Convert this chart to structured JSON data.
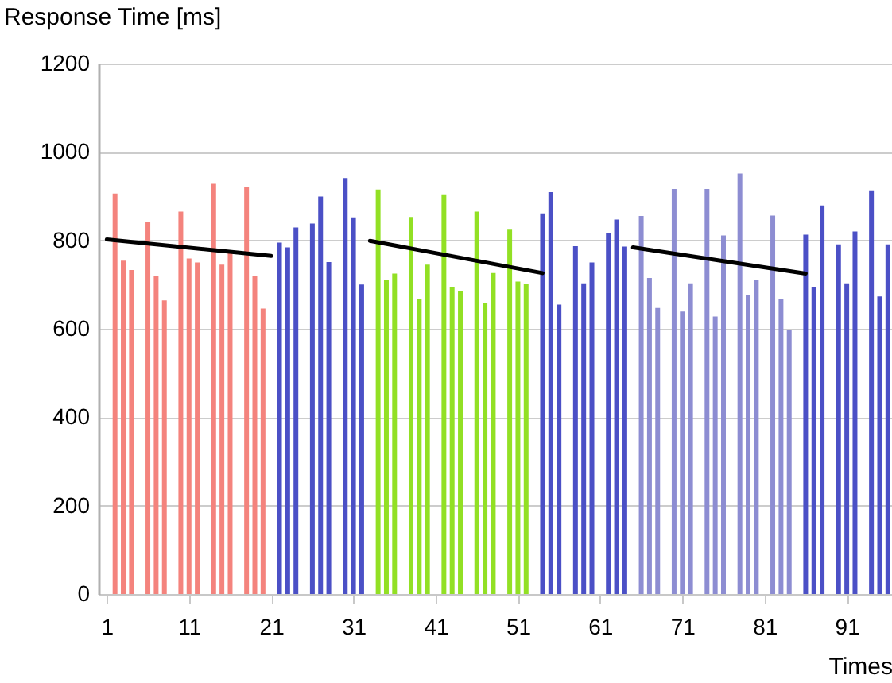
{
  "chart_data": {
    "type": "bar",
    "xlabel": "Times",
    "ylabel": "Response Time [ms]",
    "xlim": [
      0,
      96.5
    ],
    "xticks": [
      1,
      11,
      21,
      31,
      41,
      51,
      61,
      71,
      81,
      91
    ],
    "ylim": [
      0,
      1200
    ],
    "yticks": [
      0,
      200,
      400,
      600,
      800,
      1000,
      1200
    ],
    "grid": "y",
    "legend": false,
    "series": [
      {
        "color": "#f4837d",
        "x": [
          2,
          3,
          4,
          6,
          7,
          8,
          10,
          11,
          12,
          14,
          15,
          16,
          18,
          19,
          20
        ],
        "values": [
          906,
          754,
          733,
          841,
          719,
          664,
          865,
          759,
          750,
          928,
          745,
          771,
          921,
          720,
          646
        ]
      },
      {
        "color": "#4b50c6",
        "x": [
          22,
          23,
          24,
          26,
          27,
          28,
          30,
          31,
          32
        ],
        "values": [
          795,
          784,
          829,
          838,
          899,
          751,
          941,
          852,
          700
        ]
      },
      {
        "color": "#92e024",
        "x": [
          34,
          35,
          36,
          38,
          39,
          40,
          42,
          43,
          44,
          46,
          47,
          48,
          50,
          51,
          52
        ],
        "values": [
          915,
          711,
          725,
          853,
          667,
          745,
          904,
          695,
          685,
          865,
          658,
          726,
          826,
          707,
          702
        ]
      },
      {
        "color": "#4b50c6",
        "x": [
          54,
          55,
          56,
          58,
          59,
          60,
          62,
          63,
          64
        ],
        "values": [
          861,
          909,
          655,
          787,
          703,
          750,
          817,
          847,
          786
        ]
      },
      {
        "color": "#8d8dd2",
        "x": [
          66,
          67,
          68,
          70,
          71,
          72,
          74,
          75,
          76,
          78,
          79,
          80,
          82,
          83,
          84
        ],
        "values": [
          855,
          715,
          647,
          916,
          639,
          703,
          916,
          628,
          811,
          951,
          677,
          710,
          856,
          667,
          598
        ]
      },
      {
        "color": "#4b50c6",
        "x": [
          86,
          87,
          88,
          90,
          91,
          92,
          94,
          95,
          96
        ],
        "values": [
          813,
          695,
          879,
          791,
          703,
          820,
          913,
          673,
          791
        ]
      },
      {
        "type": "line",
        "color": "#000000",
        "x": [
          1,
          21
        ],
        "values": [
          802,
          765
        ]
      },
      {
        "type": "line",
        "color": "#000000",
        "x": [
          33,
          54
        ],
        "values": [
          799,
          726
        ]
      },
      {
        "type": "line",
        "color": "#000000",
        "x": [
          65,
          86
        ],
        "values": [
          784,
          725
        ]
      }
    ]
  }
}
